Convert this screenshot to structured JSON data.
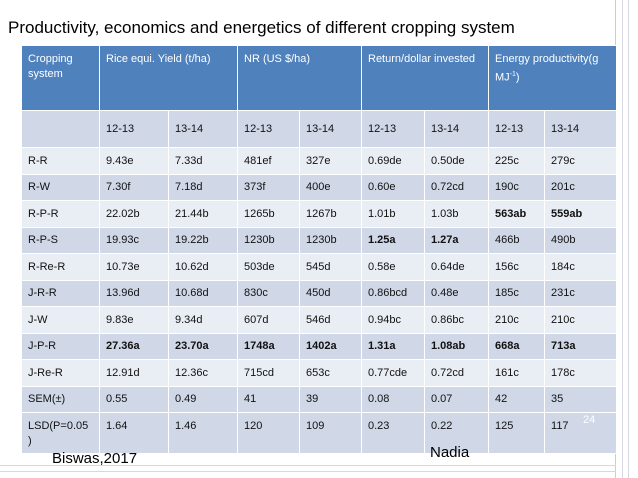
{
  "title": "Productivity, economics and energetics of different cropping system",
  "table": {
    "headers": [
      "Cropping system",
      "Rice equi. Yield (t/ha)",
      "NR (US $/ha)",
      "Return/dollar invested",
      "Energy productivity(g MJ-1)"
    ],
    "energy_header_base": "Energy productivity(g MJ",
    "energy_header_sup": "-1",
    "energy_header_end": ")",
    "years": [
      "12-13",
      "13-14",
      "12-13",
      "13-14",
      "12-13",
      "13-14",
      "12-13",
      "13-14"
    ],
    "rows": [
      {
        "system": "R-R",
        "values": [
          "9.43e",
          "7.33d",
          "481ef",
          "327e",
          "0.69de",
          "0.50de",
          "225c",
          "279c"
        ]
      },
      {
        "system": "R-W",
        "values": [
          "7.30f",
          "7.18d",
          "373f",
          "400e",
          "0.60e",
          "0.72cd",
          "190c",
          "201c"
        ]
      },
      {
        "system": "R-P-R",
        "values": [
          "22.02b",
          "21.44b",
          "1265b",
          "1267b",
          "1.01b",
          "1.03b",
          "563ab",
          "559ab"
        ]
      },
      {
        "system": "R-P-S",
        "values": [
          "19.93c",
          "19.22b",
          "1230b",
          "1230b",
          "1.25a",
          "1.27a",
          "466b",
          "490b"
        ]
      },
      {
        "system": "R-Re-R",
        "values": [
          "10.73e",
          "10.62d",
          "503de",
          "545d",
          "0.58e",
          "0.64de",
          "156c",
          "184c"
        ]
      },
      {
        "system": "J-R-R",
        "values": [
          "13.96d",
          "10.68d",
          "830c",
          "450d",
          "0.86bcd",
          "0.48e",
          "185c",
          "231c"
        ]
      },
      {
        "system": "J-W",
        "values": [
          "9.83e",
          "9.34d",
          "607d",
          "546d",
          "0.94bc",
          "0.86bc",
          "210c",
          "210c"
        ]
      },
      {
        "system": "J-P-R",
        "values": [
          "27.36a",
          "23.70a",
          "1748a",
          "1402a",
          "1.31a",
          "1.08ab",
          "668a",
          "713a"
        ]
      },
      {
        "system": "J-Re-R",
        "values": [
          "12.91d",
          "12.36c",
          "715cd",
          "653c",
          "0.77cde",
          "0.72cd",
          "161c",
          "178c"
        ]
      },
      {
        "system": "SEM(±)",
        "values": [
          "0.55",
          "0.49",
          "41",
          "39",
          "0.08",
          "0.07",
          "42",
          "35"
        ]
      }
    ],
    "lsd_row": {
      "system": "LSD(P=0.05 )",
      "values": [
        "1.64",
        "1.46",
        "120",
        "109",
        "0.23",
        "0.22",
        "125",
        "117"
      ]
    },
    "colors": {
      "header_bg": "#4f81bd",
      "row_light": "#e9edf4",
      "row_dark": "#d0d8e8",
      "highlight_purple": "#7030a0",
      "highlight_blue": "#1f3a93"
    }
  },
  "slide_number": "24",
  "footer_left": "Biswas,2017",
  "footer_right": "Nadia"
}
